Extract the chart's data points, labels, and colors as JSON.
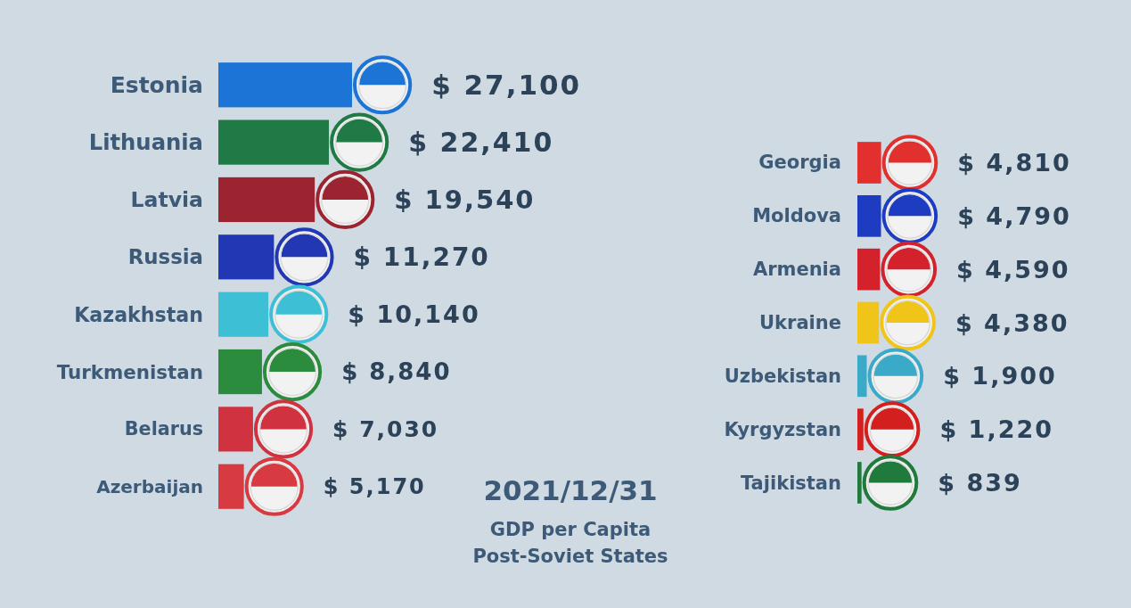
{
  "chart_data": [
    {
      "type": "bar",
      "orientation": "horizontal",
      "categories": [
        "Estonia",
        "Lithuania",
        "Latvia",
        "Russia",
        "Kazakhstan",
        "Turkmenistan",
        "Belarus",
        "Azerbaijan"
      ],
      "values": [
        27100,
        22410,
        19540,
        11270,
        10140,
        8840,
        7030,
        5170
      ],
      "colors": [
        "#1b74d6",
        "#1f7a45",
        "#9c2430",
        "#2137b4",
        "#3dbfd6",
        "#2a8c3c",
        "#d0333f",
        "#d83a42"
      ],
      "value_labels": [
        "$ 27,100",
        "$ 22,410",
        "$ 19,540",
        "$ 11,270",
        "$ 10,140",
        "$ 8,840",
        "$ 7,030",
        "$ 5,170"
      ]
    },
    {
      "type": "other",
      "title": "GDP per Capita",
      "subtitle": "Post-Soviet States",
      "annotations": [
        "2021/12/31"
      ]
    },
    {
      "type": "bar",
      "orientation": "horizontal",
      "categories": [
        "Georgia",
        "Moldova",
        "Armenia",
        "Ukraine",
        "Uzbekistan",
        "Kyrgyzstan",
        "Tajikistan"
      ],
      "values": [
        4810,
        4790,
        4590,
        4380,
        1900,
        1220,
        839
      ],
      "colors": [
        "#e2302f",
        "#1e3cc2",
        "#d4222c",
        "#f0c419",
        "#3aaac8",
        "#d41f1f",
        "#1f7a3c"
      ],
      "value_labels": [
        "$ 4,810",
        "$ 4,790",
        "$ 4,590",
        "$ 4,380",
        "$ 1,900",
        "$ 1,220",
        "$ 839"
      ]
    }
  ]
}
